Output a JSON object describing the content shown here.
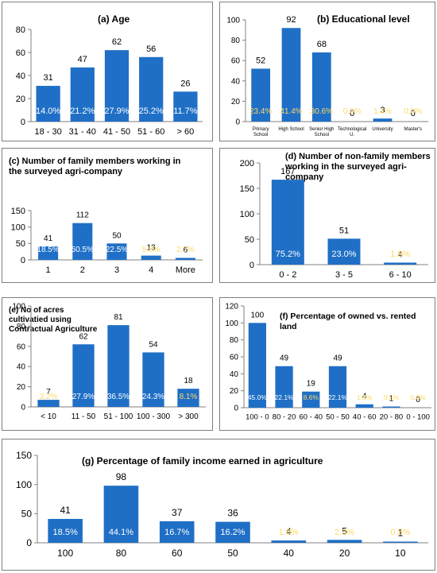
{
  "colors": {
    "bar": "#1f6fc6",
    "bar_light": "#2f80d6",
    "pct_white": "#ffffff",
    "pct_yellow": "#ffd966",
    "axis": "#808080"
  },
  "chart_data": [
    {
      "id": "a",
      "type": "bar",
      "title": "(a)  Age",
      "categories": [
        "18 - 30",
        "31 - 40",
        "41 - 50",
        "51 - 60",
        "> 60"
      ],
      "values": [
        31,
        47,
        62,
        56,
        26
      ],
      "percent_labels": [
        "14.0%",
        "21.2%",
        "27.9%",
        "25.2%",
        "11.7%"
      ],
      "ylim": [
        0,
        80
      ],
      "yticks": [
        "0",
        "20",
        "40",
        "60",
        "80"
      ],
      "grid": false
    },
    {
      "id": "b",
      "type": "bar",
      "title": "(b) Educational level",
      "categories": [
        "Primary\nSchool",
        "High School",
        "Senior High\nSchool",
        "Technological\nU.",
        "University",
        "Master's"
      ],
      "values": [
        52,
        92,
        68,
        0,
        3,
        0
      ],
      "percent_labels": [
        "23.4%",
        "41.4%",
        "30.6%",
        "0.0%",
        "1.4%",
        "0.0%"
      ],
      "ylim": [
        0,
        100
      ],
      "yticks": [
        "0",
        "20",
        "40",
        "60",
        "80",
        "100"
      ],
      "grid": false
    },
    {
      "id": "c",
      "type": "bar",
      "title": "(c) Number of family members working in\nthe surveyed agri-company",
      "categories": [
        "1",
        "2",
        "3",
        "4",
        "More"
      ],
      "values": [
        41,
        112,
        50,
        13,
        6
      ],
      "percent_labels": [
        "18.5%",
        "50.5%",
        "22.5%",
        "5.9%",
        "2.7%"
      ],
      "ylim": [
        0,
        150
      ],
      "yticks": [
        "0",
        "50",
        "100",
        "150"
      ],
      "grid": false
    },
    {
      "id": "d",
      "type": "bar",
      "title": "(d) Number of non-family members\nworking in the surveyed agri-company",
      "categories": [
        "0 - 2",
        "3 - 5",
        "6 - 10"
      ],
      "values": [
        167,
        51,
        4
      ],
      "percent_labels": [
        "75.2%",
        "23.0%",
        "1.8%"
      ],
      "ylim": [
        0,
        200
      ],
      "yticks": [
        "0",
        "50",
        "100",
        "150",
        "200"
      ],
      "grid": false
    },
    {
      "id": "e",
      "type": "bar",
      "title": "(e) No of acres\ncultivatied using\nContractual Agriculture",
      "categories": [
        "< 10",
        "11 - 50",
        "51 - 100",
        "100 - 300",
        "> 300"
      ],
      "values": [
        7,
        62,
        81,
        54,
        18
      ],
      "percent_labels": [
        "3.2%",
        "27.9%",
        "36.5%",
        "24.3%",
        "8.1%"
      ],
      "ylim": [
        0,
        100
      ],
      "yticks": [
        "0",
        "20",
        "40",
        "60",
        "80",
        "100"
      ],
      "grid": false
    },
    {
      "id": "f",
      "type": "bar",
      "title": "(f)  Percentage of owned vs. rented land",
      "categories": [
        "100 - 0",
        "80 - 20",
        "60 - 40",
        "50 - 50",
        "40 - 60",
        "20 - 80",
        "0 - 100"
      ],
      "values": [
        100,
        49,
        19,
        49,
        4,
        1,
        0
      ],
      "percent_labels": [
        "45.0%",
        "22.1%",
        "8.6%",
        "22.1%",
        "1.8%",
        "0.5%",
        "0.0%"
      ],
      "ylim": [
        0,
        120
      ],
      "yticks": [
        "0",
        "20",
        "40",
        "60",
        "80",
        "100",
        "120"
      ],
      "grid": false
    },
    {
      "id": "g",
      "type": "bar",
      "title": "(g) Percentage of family income earned in agriculture",
      "categories": [
        "100",
        "80",
        "60",
        "50",
        "40",
        "20",
        "10"
      ],
      "values": [
        41,
        98,
        37,
        36,
        4,
        5,
        1
      ],
      "percent_labels": [
        "18.5%",
        "44.1%",
        "16.7%",
        "16.2%",
        "1.8%",
        "2.3%",
        "0.5%"
      ],
      "ylim": [
        0,
        150
      ],
      "yticks": [
        "0",
        "50",
        "100",
        "150"
      ],
      "grid": false
    }
  ]
}
